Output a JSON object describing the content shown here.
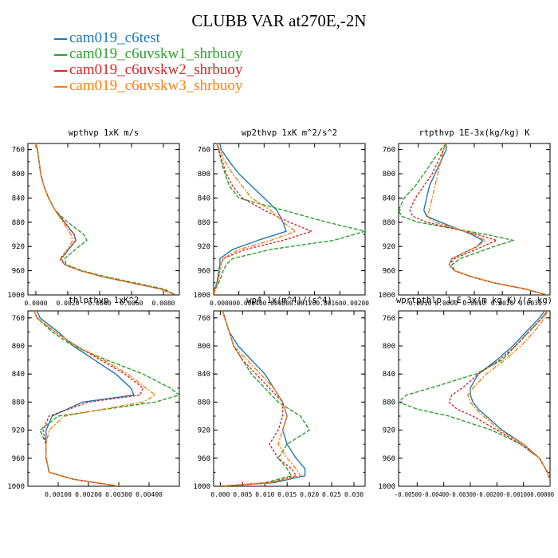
{
  "title": "CLUBB VAR at270E,-2N",
  "legend": [
    {
      "label": "cam019_c6test",
      "color": "#1f77b4"
    },
    {
      "label": "cam019_c6uvskw1_shrbuoy",
      "color": "#2ca02c"
    },
    {
      "label": "cam019_c6uvskw2_shrbuoy",
      "color": "#d62728"
    },
    {
      "label": "cam019_c6uvskw3_shrbuoy",
      "color": "#ff7f0e"
    }
  ],
  "chart_data": [
    {
      "type": "line",
      "title": "wpthvp  1xK m/s",
      "ylim": [
        1000,
        750
      ],
      "yticks": [
        "760",
        "800",
        "840",
        "880",
        "920",
        "960",
        "1000"
      ],
      "ytick_values": [
        760,
        800,
        840,
        880,
        920,
        960,
        1000
      ],
      "xlim": [
        -0.0005,
        0.009
      ],
      "xticks": [
        "0.0000",
        "0.0020",
        "0.0040",
        "0.0060",
        "0.0080"
      ],
      "xtick_values": [
        0.0,
        0.002,
        0.004,
        0.006,
        0.008
      ],
      "y": [
        750,
        760,
        780,
        800,
        820,
        840,
        860,
        880,
        900,
        910,
        920,
        940,
        950,
        960,
        970,
        980,
        990,
        1000
      ],
      "series": [
        {
          "name": "cam019_c6test",
          "x": [
            0.0,
            0.0001,
            0.0002,
            0.0003,
            0.0005,
            0.0008,
            0.0012,
            0.0018,
            0.0024,
            0.0025,
            0.0022,
            0.0016,
            0.0018,
            0.0028,
            0.0042,
            0.006,
            0.0078,
            0.0088
          ]
        },
        {
          "name": "cam019_c6uvskw1_shrbuoy",
          "x": [
            0.0,
            0.0001,
            0.0002,
            0.0003,
            0.0005,
            0.0008,
            0.0012,
            0.002,
            0.003,
            0.0032,
            0.0027,
            0.0018,
            0.0019,
            0.0029,
            0.0044,
            0.0062,
            0.008,
            0.0088
          ]
        },
        {
          "name": "cam019_c6uvskw2_shrbuoy",
          "x": [
            0.0,
            0.0001,
            0.0002,
            0.0003,
            0.0005,
            0.0008,
            0.0012,
            0.0018,
            0.0024,
            0.0025,
            0.0022,
            0.0015,
            0.0018,
            0.0028,
            0.0042,
            0.006,
            0.0078,
            0.0088
          ]
        },
        {
          "name": "cam019_c6uvskw3_shrbuoy",
          "x": [
            0.0,
            0.0001,
            0.0002,
            0.0003,
            0.0005,
            0.0008,
            0.0012,
            0.0017,
            0.0022,
            0.0023,
            0.0021,
            0.0016,
            0.0018,
            0.0028,
            0.0042,
            0.006,
            0.0078,
            0.0088
          ]
        }
      ]
    },
    {
      "type": "line",
      "title": "wp2thvp  1xK m^2/s^2",
      "ylim": [
        1000,
        750
      ],
      "yticks": [
        "760",
        "800",
        "840",
        "880",
        "920",
        "960",
        "1000"
      ],
      "ytick_values": [
        760,
        800,
        840,
        880,
        920,
        960,
        1000
      ],
      "xlim": [
        0.0,
        0.0024
      ],
      "xticks": [
        "0.0000",
        "0.0004",
        "0.0008",
        "0.0012",
        "0.0016",
        "0.0020"
      ],
      "xtick_labels_joined": "0.000000.000400.000800.001200.001600.00200",
      "xtick_values": [
        0.0,
        0.0004,
        0.0008,
        0.0012,
        0.0016,
        0.002
      ],
      "y": [
        750,
        760,
        780,
        800,
        820,
        840,
        860,
        880,
        895,
        910,
        925,
        940,
        950,
        960,
        970,
        980,
        990,
        1000
      ],
      "series": [
        {
          "name": "cam019_c6test",
          "x": [
            0.0001,
            0.00012,
            0.00025,
            0.0004,
            0.0006,
            0.0008,
            0.001,
            0.0011,
            0.00115,
            0.0007,
            0.0003,
            0.0001,
            0.0001,
            8e-05,
            7e-05,
            5e-05,
            2e-05,
            0.0
          ]
        },
        {
          "name": "cam019_c6uvskw1_shrbuoy",
          "x": [
            5e-05,
            8e-05,
            0.00012,
            0.00018,
            0.00025,
            0.0004,
            0.0011,
            0.0018,
            0.0024,
            0.0019,
            0.0009,
            0.0003,
            0.0002,
            0.00015,
            0.00012,
            8e-05,
            3e-05,
            0.0
          ]
        },
        {
          "name": "cam019_c6uvskw2_shrbuoy",
          "x": [
            5e-05,
            8e-05,
            0.00014,
            0.0002,
            0.0003,
            0.00045,
            0.0008,
            0.0012,
            0.00155,
            0.0011,
            0.0005,
            0.00015,
            0.00012,
            0.0001,
            8e-05,
            6e-05,
            2e-05,
            0.0
          ]
        },
        {
          "name": "cam019_c6uvskw3_shrbuoy",
          "x": [
            5e-05,
            0.0001,
            0.00018,
            0.0003,
            0.00045,
            0.0006,
            0.0009,
            0.0011,
            0.0013,
            0.0009,
            0.0004,
            0.00015,
            0.00012,
            0.0001,
            8e-05,
            6e-05,
            2e-05,
            0.0
          ]
        }
      ]
    },
    {
      "type": "line",
      "title": "rtpthvp  1E-3x(kg/kg) K",
      "ylim": [
        1000,
        750
      ],
      "yticks": [
        "760",
        "800",
        "840",
        "880",
        "920",
        "960",
        "1000"
      ],
      "ytick_values": [
        760,
        800,
        840,
        880,
        920,
        960,
        1000
      ],
      "xlim": [
        -0.0017,
        0.0037
      ],
      "xticks": [
        "-0.0010",
        "0.0000",
        "0.0010",
        "0.0020",
        "0.0030"
      ],
      "xtick_values": [
        -0.001,
        0.0,
        0.001,
        0.002,
        0.003
      ],
      "y": [
        750,
        760,
        780,
        800,
        820,
        840,
        860,
        870,
        880,
        900,
        910,
        920,
        940,
        950,
        960,
        970,
        980,
        990,
        1000
      ],
      "series": [
        {
          "name": "cam019_c6test",
          "x": [
            0.0,
            0.0,
            -0.0002,
            -0.0004,
            -0.0006,
            -0.0007,
            -0.0008,
            -0.0007,
            -0.0002,
            0.0009,
            0.0013,
            0.0011,
            0.0002,
            0.0001,
            0.0003,
            0.0009,
            0.0017,
            0.0028,
            0.0036
          ]
        },
        {
          "name": "cam019_c6uvskw1_shrbuoy",
          "x": [
            0.0,
            -0.0002,
            -0.0005,
            -0.0008,
            -0.0011,
            -0.0015,
            -0.0017,
            -0.0016,
            -0.001,
            0.0014,
            0.0024,
            0.0017,
            0.0005,
            0.0002,
            0.0003,
            0.0009,
            0.0017,
            0.0028,
            0.0036
          ]
        },
        {
          "name": "cam019_c6uvskw2_shrbuoy",
          "x": [
            0.0,
            -0.0001,
            -0.0003,
            -0.0005,
            -0.0008,
            -0.0011,
            -0.0013,
            -0.0012,
            -0.0007,
            0.0011,
            0.0018,
            0.0013,
            0.0003,
            0.0001,
            0.0003,
            0.0009,
            0.0017,
            0.0028,
            0.0036
          ]
        },
        {
          "name": "cam019_c6uvskw3_shrbuoy",
          "x": [
            0.0,
            -0.0001,
            -0.0002,
            -0.0003,
            -0.0004,
            -0.0005,
            -0.0006,
            -0.0007,
            -0.0004,
            0.001,
            0.0014,
            0.0011,
            0.0002,
            0.0001,
            0.0003,
            0.0009,
            0.0017,
            0.0028,
            0.0036
          ]
        }
      ]
    },
    {
      "type": "line",
      "title": "thlpthvp  1xK^2",
      "ylim": [
        1000,
        750
      ],
      "yticks": [
        "760",
        "800",
        "840",
        "880",
        "920",
        "960",
        "1000"
      ],
      "ytick_values": [
        760,
        800,
        840,
        880,
        920,
        960,
        1000
      ],
      "xlim": [
        0.0,
        0.005
      ],
      "xticks": [
        "0.00100",
        "0.00200",
        "0.00300",
        "0.00400"
      ],
      "xtick_values": [
        0.001,
        0.002,
        0.003,
        0.004
      ],
      "y": [
        750,
        760,
        780,
        800,
        820,
        840,
        860,
        870,
        880,
        900,
        920,
        940,
        960,
        980,
        990,
        1000
      ],
      "series": [
        {
          "name": "cam019_c6test",
          "x": [
            0.0003,
            0.0004,
            0.001,
            0.0015,
            0.0022,
            0.0029,
            0.0034,
            0.0035,
            0.0018,
            0.0008,
            0.0006,
            0.0006,
            0.0006,
            0.0007,
            0.0015,
            0.003
          ]
        },
        {
          "name": "cam019_c6uvskw1_shrbuoy",
          "x": [
            0.0002,
            0.0003,
            0.0008,
            0.0015,
            0.0026,
            0.0038,
            0.0047,
            0.005,
            0.0042,
            0.001,
            0.0004,
            0.0006,
            0.0006,
            0.0007,
            0.0015,
            0.003
          ]
        },
        {
          "name": "cam019_c6uvskw2_shrbuoy",
          "x": [
            0.0002,
            0.0003,
            0.0009,
            0.0016,
            0.0024,
            0.0032,
            0.0038,
            0.0037,
            0.002,
            0.0007,
            0.0005,
            0.0006,
            0.0006,
            0.0007,
            0.0015,
            0.003
          ]
        },
        {
          "name": "cam019_c6uvskw3_shrbuoy",
          "x": [
            0.0002,
            0.0003,
            0.0009,
            0.0016,
            0.0025,
            0.0033,
            0.0039,
            0.0042,
            0.0038,
            0.0012,
            0.0007,
            0.0006,
            0.0006,
            0.0007,
            0.0015,
            0.003
          ]
        }
      ]
    },
    {
      "type": "line",
      "title": "wp4  1x(m^4)/(s^4)",
      "ylim": [
        1000,
        750
      ],
      "yticks": [
        "760",
        "800",
        "840",
        "880",
        "920",
        "960",
        "1000"
      ],
      "ytick_values": [
        760,
        800,
        840,
        880,
        920,
        960,
        1000
      ],
      "xlim": [
        -0.0015,
        0.0325
      ],
      "xticks": [
        "0.000",
        "0.005",
        "0.010",
        "0.015",
        "0.020",
        "0.025",
        "0.030"
      ],
      "xtick_values": [
        0.0,
        0.005,
        0.01,
        0.015,
        0.02,
        0.025,
        0.03
      ],
      "y": [
        750,
        760,
        780,
        800,
        820,
        840,
        860,
        880,
        900,
        920,
        940,
        960,
        975,
        985,
        995,
        1000
      ],
      "series": [
        {
          "name": "cam019_c6test",
          "x": [
            0.0005,
            0.001,
            0.002,
            0.004,
            0.007,
            0.01,
            0.012,
            0.014,
            0.015,
            0.014,
            0.015,
            0.017,
            0.019,
            0.019,
            0.012,
            0.0
          ]
        },
        {
          "name": "cam019_c6uvskw1_shrbuoy",
          "x": [
            0.0005,
            0.001,
            0.002,
            0.003,
            0.005,
            0.007,
            0.01,
            0.013,
            0.018,
            0.02,
            0.015,
            0.013,
            0.015,
            0.016,
            0.01,
            0.0
          ]
        },
        {
          "name": "cam019_c6uvskw2_shrbuoy",
          "x": [
            0.0005,
            0.001,
            0.002,
            0.003,
            0.005,
            0.008,
            0.011,
            0.014,
            0.014,
            0.013,
            0.011,
            0.013,
            0.016,
            0.017,
            0.011,
            0.0
          ]
        },
        {
          "name": "cam019_c6uvskw3_shrbuoy",
          "x": [
            0.0005,
            0.001,
            0.002,
            0.003,
            0.006,
            0.009,
            0.012,
            0.014,
            0.015,
            0.014,
            0.013,
            0.015,
            0.017,
            0.018,
            0.011,
            0.0
          ]
        }
      ]
    },
    {
      "type": "line",
      "title": "wprtpthlp  1-E-3x(m kg K)/(s kg)",
      "ylim": [
        1000,
        750
      ],
      "yticks": [
        "760",
        "800",
        "840",
        "880",
        "920",
        "960",
        "1000"
      ],
      "ytick_values": [
        760,
        800,
        840,
        880,
        920,
        960,
        1000
      ],
      "xlim": [
        -0.0057,
        0.0
      ],
      "xticks": [
        "-0.00500",
        "-0.00400",
        "-0.00300",
        "-0.00200",
        "-0.00100",
        "0.00000"
      ],
      "xtick_labels_joined": "-0.00500-0.00400-0.00300-0.00200-0.001000.00000",
      "xtick_values": [
        -0.005,
        -0.004,
        -0.003,
        -0.002,
        -0.001,
        0.0
      ],
      "y": [
        750,
        760,
        780,
        800,
        820,
        840,
        860,
        870,
        880,
        890,
        900,
        920,
        940,
        960,
        980,
        990,
        1000
      ],
      "series": [
        {
          "name": "cam019_c6test",
          "x": [
            -0.0002,
            -0.0004,
            -0.0009,
            -0.0014,
            -0.002,
            -0.0027,
            -0.003,
            -0.003,
            -0.0029,
            -0.0027,
            -0.0024,
            -0.0018,
            -0.001,
            -0.0004,
            -0.0001,
            0.0,
            0.0
          ]
        },
        {
          "name": "cam019_c6uvskw1_shrbuoy",
          "x": [
            -0.0001,
            -0.0003,
            -0.0008,
            -0.0013,
            -0.0018,
            -0.0028,
            -0.0045,
            -0.0054,
            -0.0057,
            -0.005,
            -0.0038,
            -0.0022,
            -0.0011,
            -0.0004,
            -0.0001,
            0.0,
            0.0
          ]
        },
        {
          "name": "cam019_c6uvskw2_shrbuoy",
          "x": [
            -0.0001,
            -0.0003,
            -0.0008,
            -0.0013,
            -0.0019,
            -0.0027,
            -0.0033,
            -0.0037,
            -0.0038,
            -0.0035,
            -0.0029,
            -0.002,
            -0.0011,
            -0.0004,
            -0.0001,
            0.0,
            0.0
          ]
        },
        {
          "name": "cam019_c6uvskw3_shrbuoy",
          "x": [
            -0.0001,
            -0.0002,
            -0.0006,
            -0.0011,
            -0.0017,
            -0.0024,
            -0.0029,
            -0.0031,
            -0.003,
            -0.0028,
            -0.0025,
            -0.0019,
            -0.001,
            -0.0004,
            -0.0001,
            0.0,
            0.0
          ]
        }
      ]
    }
  ]
}
